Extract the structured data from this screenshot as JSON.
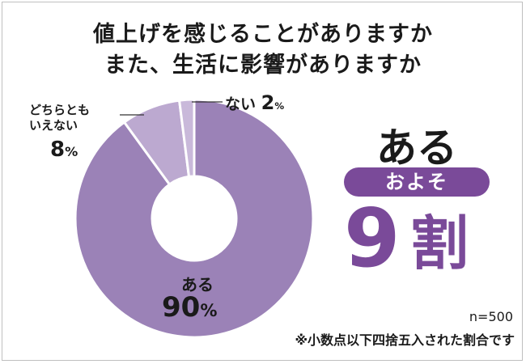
{
  "title": {
    "line1": "値上げを感じることがありますか",
    "line2": "また、生活に影響がありますか"
  },
  "chart_data": {
    "type": "pie",
    "donut": true,
    "slices": [
      {
        "label": "ある",
        "value": 90,
        "color": "#9b82b7"
      },
      {
        "label": "どちらともいえない",
        "value": 8,
        "color": "#bca9d0"
      },
      {
        "label": "ない",
        "value": 2,
        "color": "#c9b9da"
      }
    ]
  },
  "labels": {
    "aru": "ある",
    "aru_value": "90",
    "dochira_line1": "どちらとも",
    "dochira_line2": "いえない",
    "dochira_value": "8",
    "nai": "ない",
    "nai_value": "2",
    "pct": "%"
  },
  "callout": {
    "heading": "ある",
    "pill": "およそ",
    "number": "9",
    "unit": "割",
    "accent": "#7a4a99"
  },
  "footer": {
    "n": "n=500",
    "note": "※小数点以下四捨五入された割合です"
  }
}
